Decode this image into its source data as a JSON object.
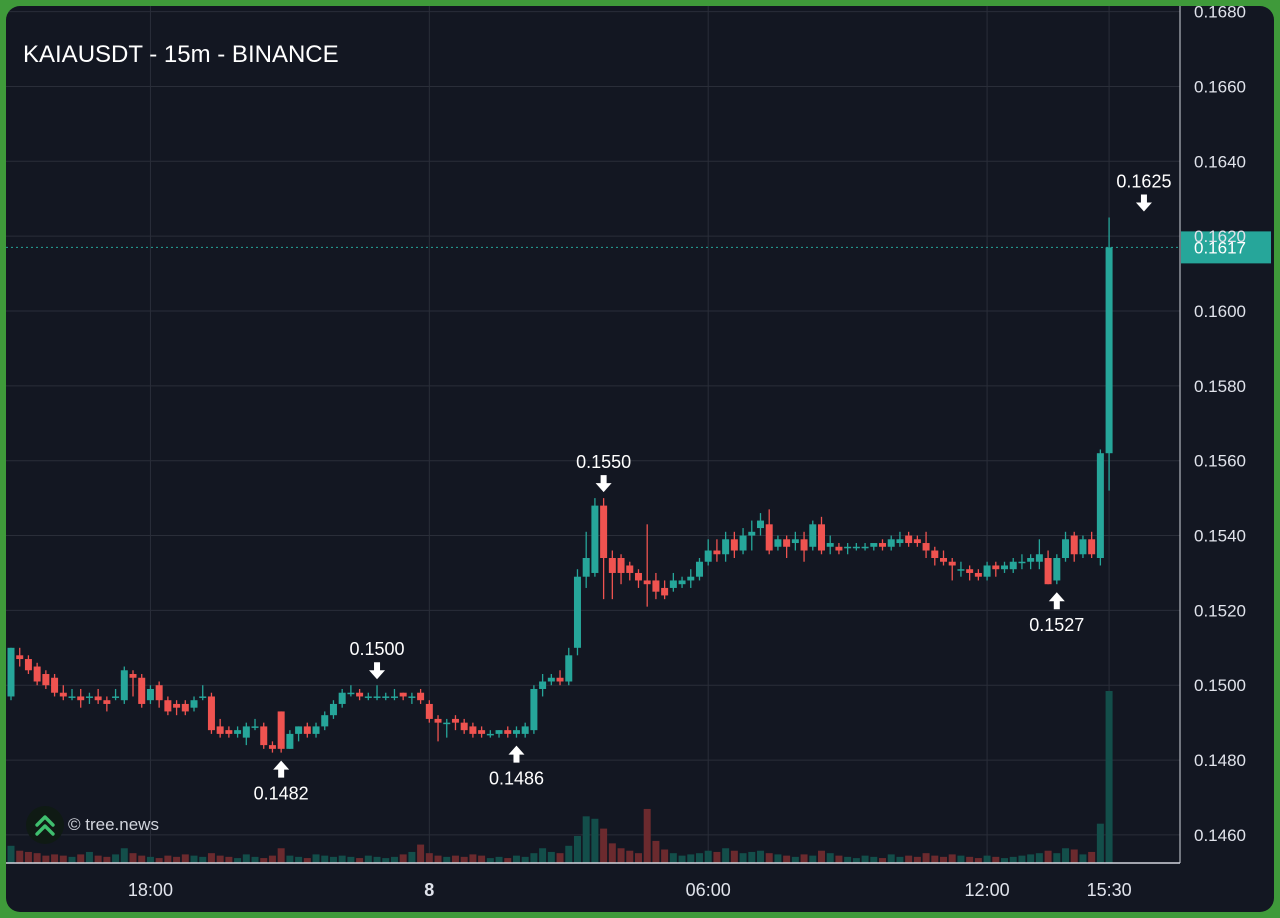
{
  "header": {
    "title": "KAIAUSDT - 15m - BINANCE"
  },
  "brand": {
    "text": "© tree.news",
    "icon": "double-chevron-up-icon"
  },
  "colors": {
    "background": "#131722",
    "grid": "#2a2e39",
    "up": "#26a69a",
    "down": "#ef5350",
    "vol_up": "#134e4a",
    "vol_down": "#6b2a2e",
    "axis_text": "#e0e3eb",
    "price_tag": "#26a69a"
  },
  "chart_data": {
    "type": "candlestick",
    "title": "KAIAUSDT - 15m - BINANCE",
    "symbol": "KAIAUSDT",
    "interval": "15m",
    "exchange": "BINANCE",
    "y_ticks": [
      "0.1680",
      "0.1660",
      "0.1640",
      "0.1620",
      "0.1600",
      "0.1580",
      "0.1560",
      "0.1540",
      "0.1520",
      "0.1500",
      "0.1480",
      "0.1460"
    ],
    "y_range": [
      0.14525,
      0.16815
    ],
    "x_ticks": [
      {
        "label": "18:00",
        "index": 16,
        "bold": false
      },
      {
        "label": "8",
        "index": 48,
        "bold": true
      },
      {
        "label": "06:00",
        "index": 80,
        "bold": false
      },
      {
        "label": "12:00",
        "index": 112,
        "bold": false
      },
      {
        "label": "15:30",
        "index": 126,
        "bold": false
      }
    ],
    "last_price": {
      "label": "0.1617",
      "value": 0.1617
    },
    "annotations": [
      {
        "label": "0.1482",
        "index": 31,
        "value": 0.1482,
        "kind": "low"
      },
      {
        "label": "0.1500",
        "index": 42,
        "value": 0.15,
        "kind": "high"
      },
      {
        "label": "0.1486",
        "index": 58,
        "value": 0.1486,
        "kind": "low"
      },
      {
        "label": "0.1550",
        "index": 68,
        "value": 0.155,
        "kind": "high"
      },
      {
        "label": "0.1527",
        "index": 120,
        "value": 0.1527,
        "kind": "low"
      },
      {
        "label": "0.1625",
        "index": 130,
        "value": 0.1625,
        "kind": "high"
      }
    ],
    "ohlcv": [
      [
        0.1497,
        0.151,
        0.1496,
        0.151,
        14
      ],
      [
        0.1508,
        0.151,
        0.1505,
        0.1507,
        10
      ],
      [
        0.1507,
        0.1508,
        0.1503,
        0.1504,
        9
      ],
      [
        0.1505,
        0.1506,
        0.15,
        0.1501,
        8
      ],
      [
        0.1503,
        0.1504,
        0.1499,
        0.15,
        6
      ],
      [
        0.1502,
        0.1503,
        0.1497,
        0.1498,
        7
      ],
      [
        0.1498,
        0.15,
        0.1496,
        0.1497,
        6
      ],
      [
        0.1497,
        0.1499,
        0.1496,
        0.1497,
        5
      ],
      [
        0.1497,
        0.1499,
        0.1494,
        0.1496,
        7
      ],
      [
        0.1497,
        0.1498,
        0.1495,
        0.1497,
        9
      ],
      [
        0.1497,
        0.1499,
        0.1495,
        0.1496,
        6
      ],
      [
        0.1496,
        0.1497,
        0.1493,
        0.1495,
        5
      ],
      [
        0.1497,
        0.1499,
        0.1496,
        0.1497,
        7
      ],
      [
        0.1496,
        0.1505,
        0.1495,
        0.1504,
        12
      ],
      [
        0.1503,
        0.1504,
        0.1497,
        0.1502,
        8
      ],
      [
        0.1502,
        0.1503,
        0.1494,
        0.1495,
        6
      ],
      [
        0.1496,
        0.15,
        0.1495,
        0.1499,
        5
      ],
      [
        0.15,
        0.1501,
        0.1494,
        0.1496,
        4
      ],
      [
        0.1496,
        0.1497,
        0.1492,
        0.1493,
        6
      ],
      [
        0.1495,
        0.1496,
        0.1492,
        0.1494,
        5
      ],
      [
        0.1495,
        0.1496,
        0.1492,
        0.1493,
        7
      ],
      [
        0.1494,
        0.1497,
        0.1493,
        0.1496,
        6
      ],
      [
        0.1497,
        0.15,
        0.1496,
        0.1497,
        5
      ],
      [
        0.1497,
        0.1498,
        0.1487,
        0.1488,
        8
      ],
      [
        0.1489,
        0.1491,
        0.1486,
        0.1487,
        6
      ],
      [
        0.1488,
        0.1489,
        0.1486,
        0.1487,
        5
      ],
      [
        0.1487,
        0.1489,
        0.1486,
        0.1488,
        4
      ],
      [
        0.1486,
        0.149,
        0.1484,
        0.1489,
        7
      ],
      [
        0.1489,
        0.1491,
        0.1488,
        0.1489,
        5
      ],
      [
        0.1489,
        0.149,
        0.1483,
        0.1484,
        4
      ],
      [
        0.1484,
        0.1485,
        0.1482,
        0.1483,
        6
      ],
      [
        0.1493,
        0.1493,
        0.1482,
        0.1483,
        12
      ],
      [
        0.1483,
        0.1488,
        0.1483,
        0.1487,
        6
      ],
      [
        0.1487,
        0.1489,
        0.1485,
        0.1489,
        5
      ],
      [
        0.1489,
        0.149,
        0.1486,
        0.1487,
        4
      ],
      [
        0.1487,
        0.149,
        0.1486,
        0.1489,
        7
      ],
      [
        0.1489,
        0.1493,
        0.1488,
        0.1492,
        6
      ],
      [
        0.1492,
        0.1496,
        0.1491,
        0.1495,
        5
      ],
      [
        0.1495,
        0.1499,
        0.1494,
        0.1498,
        6
      ],
      [
        0.1498,
        0.15,
        0.1497,
        0.1498,
        5
      ],
      [
        0.1498,
        0.1499,
        0.1496,
        0.1497,
        4
      ],
      [
        0.1497,
        0.1498,
        0.1496,
        0.1497,
        6
      ],
      [
        0.1497,
        0.15,
        0.1496,
        0.1497,
        5
      ],
      [
        0.1497,
        0.1498,
        0.1496,
        0.1497,
        4
      ],
      [
        0.1497,
        0.1499,
        0.1496,
        0.1497,
        5
      ],
      [
        0.1498,
        0.1498,
        0.1496,
        0.1497,
        7
      ],
      [
        0.1497,
        0.1498,
        0.1495,
        0.1497,
        9
      ],
      [
        0.1498,
        0.1499,
        0.1495,
        0.1496,
        15
      ],
      [
        0.1495,
        0.1496,
        0.149,
        0.1491,
        8
      ],
      [
        0.1491,
        0.1492,
        0.1485,
        0.149,
        6
      ],
      [
        0.149,
        0.1491,
        0.1486,
        0.149,
        5
      ],
      [
        0.1491,
        0.1492,
        0.1488,
        0.149,
        6
      ],
      [
        0.149,
        0.1491,
        0.1487,
        0.1488,
        5
      ],
      [
        0.1489,
        0.149,
        0.1486,
        0.1487,
        7
      ],
      [
        0.1488,
        0.1489,
        0.1486,
        0.1487,
        6
      ],
      [
        0.1487,
        0.1488,
        0.1486,
        0.1487,
        4
      ],
      [
        0.1487,
        0.1488,
        0.1486,
        0.1488,
        5
      ],
      [
        0.1488,
        0.1489,
        0.1486,
        0.1487,
        4
      ],
      [
        0.1487,
        0.1489,
        0.1486,
        0.1488,
        6
      ],
      [
        0.1487,
        0.149,
        0.1486,
        0.1489,
        5
      ],
      [
        0.1488,
        0.15,
        0.1487,
        0.1499,
        8
      ],
      [
        0.1499,
        0.1503,
        0.1497,
        0.1501,
        12
      ],
      [
        0.1501,
        0.1503,
        0.15,
        0.1502,
        9
      ],
      [
        0.1502,
        0.1504,
        0.15,
        0.1501,
        8
      ],
      [
        0.1501,
        0.151,
        0.15,
        0.1508,
        14
      ],
      [
        0.151,
        0.1531,
        0.1508,
        0.1529,
        22
      ],
      [
        0.1529,
        0.1541,
        0.1526,
        0.1534,
        38
      ],
      [
        0.153,
        0.155,
        0.1529,
        0.1548,
        36
      ],
      [
        0.1548,
        0.155,
        0.1523,
        0.1534,
        28
      ],
      [
        0.1534,
        0.1536,
        0.1523,
        0.153,
        16
      ],
      [
        0.1534,
        0.1535,
        0.1527,
        0.153,
        12
      ],
      [
        0.1532,
        0.1533,
        0.1528,
        0.153,
        10
      ],
      [
        0.153,
        0.1531,
        0.1526,
        0.1528,
        8
      ],
      [
        0.1528,
        0.1543,
        0.1521,
        0.1527,
        44
      ],
      [
        0.1528,
        0.153,
        0.1523,
        0.1525,
        18
      ],
      [
        0.1526,
        0.1528,
        0.1523,
        0.1524,
        11
      ],
      [
        0.1526,
        0.153,
        0.1525,
        0.1528,
        8
      ],
      [
        0.1527,
        0.1529,
        0.1526,
        0.1528,
        6
      ],
      [
        0.1528,
        0.1531,
        0.1526,
        0.1529,
        7
      ],
      [
        0.1529,
        0.1534,
        0.1528,
        0.1533,
        8
      ],
      [
        0.1533,
        0.1539,
        0.1532,
        0.1536,
        10
      ],
      [
        0.1536,
        0.1539,
        0.1533,
        0.1535,
        9
      ],
      [
        0.1535,
        0.1541,
        0.1533,
        0.1539,
        12
      ],
      [
        0.1539,
        0.1541,
        0.1534,
        0.1536,
        10
      ],
      [
        0.1536,
        0.1542,
        0.1535,
        0.154,
        8
      ],
      [
        0.154,
        0.1544,
        0.1536,
        0.1541,
        9
      ],
      [
        0.1542,
        0.1546,
        0.154,
        0.1544,
        10
      ],
      [
        0.1543,
        0.1547,
        0.1535,
        0.1536,
        8
      ],
      [
        0.1537,
        0.154,
        0.1536,
        0.1539,
        7
      ],
      [
        0.1539,
        0.154,
        0.1534,
        0.1537,
        6
      ],
      [
        0.1538,
        0.1541,
        0.1536,
        0.1539,
        5
      ],
      [
        0.1539,
        0.1541,
        0.1533,
        0.1536,
        7
      ],
      [
        0.1537,
        0.1544,
        0.1536,
        0.1543,
        6
      ],
      [
        0.1543,
        0.1545,
        0.1535,
        0.1536,
        10
      ],
      [
        0.1537,
        0.154,
        0.1535,
        0.1538,
        8
      ],
      [
        0.1537,
        0.1538,
        0.1535,
        0.1536,
        6
      ],
      [
        0.1537,
        0.1538,
        0.1535,
        0.1537,
        5
      ],
      [
        0.1537,
        0.1538,
        0.1536,
        0.1537,
        4
      ],
      [
        0.1537,
        0.1538,
        0.1536,
        0.1537,
        6
      ],
      [
        0.1537,
        0.1538,
        0.1536,
        0.1538,
        5
      ],
      [
        0.1538,
        0.1539,
        0.1536,
        0.1537,
        4
      ],
      [
        0.1537,
        0.154,
        0.1536,
        0.1539,
        7
      ],
      [
        0.1538,
        0.1541,
        0.1537,
        0.1539,
        5
      ],
      [
        0.154,
        0.1541,
        0.1537,
        0.1538,
        6
      ],
      [
        0.1539,
        0.154,
        0.1537,
        0.1538,
        5
      ],
      [
        0.1538,
        0.1541,
        0.1534,
        0.1536,
        8
      ],
      [
        0.1536,
        0.1537,
        0.1532,
        0.1534,
        6
      ],
      [
        0.1534,
        0.1536,
        0.1532,
        0.1533,
        5
      ],
      [
        0.1533,
        0.1534,
        0.1528,
        0.1532,
        7
      ],
      [
        0.1531,
        0.1533,
        0.1529,
        0.1531,
        6
      ],
      [
        0.1531,
        0.1532,
        0.1528,
        0.153,
        5
      ],
      [
        0.153,
        0.1531,
        0.1528,
        0.1529,
        4
      ],
      [
        0.1529,
        0.1533,
        0.1528,
        0.1532,
        6
      ],
      [
        0.1532,
        0.1533,
        0.1529,
        0.1531,
        5
      ],
      [
        0.1531,
        0.1533,
        0.153,
        0.1532,
        4
      ],
      [
        0.1531,
        0.1534,
        0.153,
        0.1533,
        5
      ],
      [
        0.1533,
        0.1535,
        0.1531,
        0.1533,
        6
      ],
      [
        0.1533,
        0.1535,
        0.1531,
        0.1534,
        7
      ],
      [
        0.1533,
        0.1539,
        0.1531,
        0.1535,
        8
      ],
      [
        0.1534,
        0.1536,
        0.1527,
        0.1527,
        10
      ],
      [
        0.1528,
        0.1535,
        0.1527,
        0.1534,
        8
      ],
      [
        0.1534,
        0.1541,
        0.1533,
        0.1539,
        12
      ],
      [
        0.154,
        0.1541,
        0.1533,
        0.1535,
        11
      ],
      [
        0.1535,
        0.154,
        0.1534,
        0.1539,
        7
      ],
      [
        0.1539,
        0.1541,
        0.1534,
        0.1535,
        9
      ],
      [
        0.1534,
        0.1563,
        0.1532,
        0.1562,
        32
      ],
      [
        0.1562,
        0.1625,
        0.1552,
        0.1617,
        140
      ]
    ]
  }
}
